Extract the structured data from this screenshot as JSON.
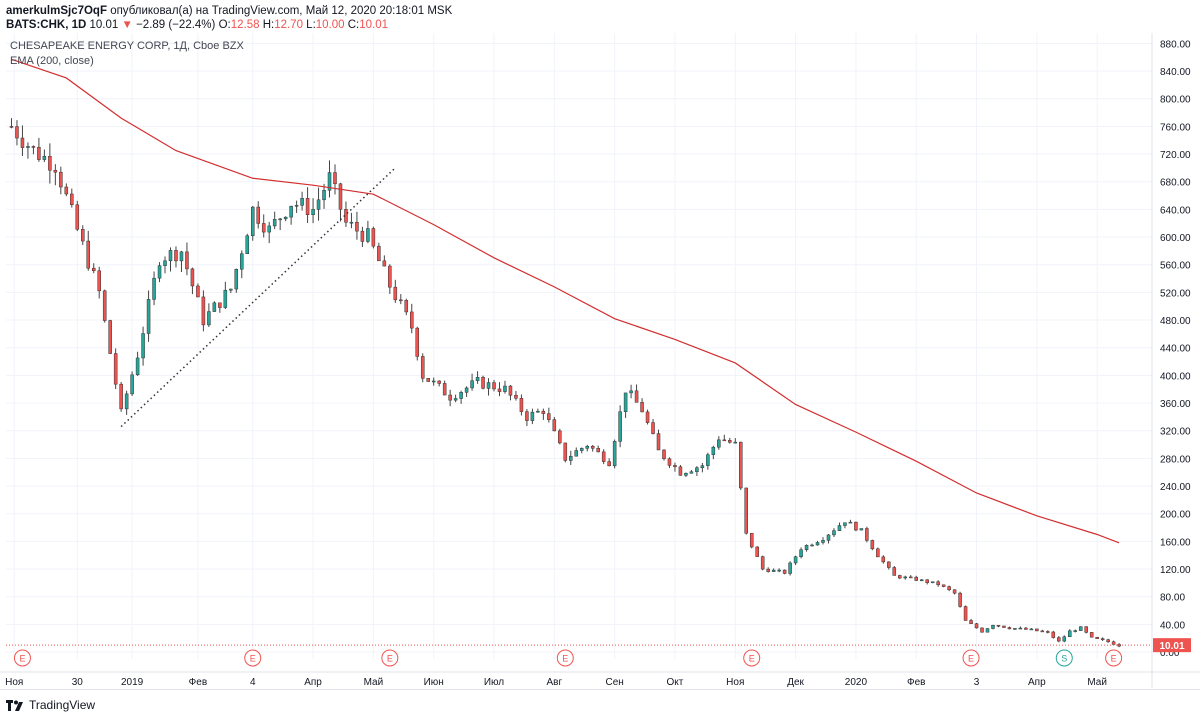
{
  "header": {
    "author": "amerkulmSjc7OqF",
    "published": "опубликовал(а) на TradingView.com, Май 12, 2020 20:18:01 MSK",
    "symbol": "BATS:CHK, 1D",
    "last": "10.01",
    "change_arrow": "▼",
    "change": "−2.89 (−22.4%)",
    "ohlc_o_label": "O:",
    "ohlc_o": "12.58",
    "ohlc_h_label": "H:",
    "ohlc_h": "12.70",
    "ohlc_l_label": "L:",
    "ohlc_l": "10.00",
    "ohlc_c_label": "C:",
    "ohlc_c": "10.01"
  },
  "legend": {
    "title": "CHESAPEAKE ENERGY CORP, 1Д, Cboe BZX",
    "indicator": "EMA (200, close)"
  },
  "footer": {
    "brand": "TradingView"
  },
  "colors": {
    "up": "#26a69a",
    "down": "#ef5350",
    "ema": "#d32f2f",
    "grid": "#f0f3fa",
    "text": "#131722",
    "axis": "#e0e3eb",
    "trendline": "#333333"
  },
  "chart_data": {
    "type": "candlestick",
    "y_scale": "linear",
    "ylim": [
      -10,
      895
    ],
    "y_ticks": [
      0,
      40,
      80,
      120,
      160,
      200,
      240,
      280,
      320,
      360,
      400,
      440,
      480,
      520,
      560,
      600,
      640,
      680,
      720,
      760,
      800,
      840,
      880
    ],
    "y_tick_labels": [
      "0.00",
      "40.00",
      "80.00",
      "120.00",
      "160.00",
      "200.00",
      "240.00",
      "280.00",
      "320.00",
      "360.00",
      "400.00",
      "440.00",
      "480.00",
      "520.00",
      "560.00",
      "600.00",
      "640.00",
      "680.00",
      "720.00",
      "760.00",
      "800.00",
      "840.00",
      "880.00"
    ],
    "x_labels": [
      {
        "label": "Ноя",
        "t": 0.5
      },
      {
        "label": "30",
        "t": 12
      },
      {
        "label": "2019",
        "t": 22
      },
      {
        "label": "Фев",
        "t": 34
      },
      {
        "label": "4",
        "t": 44
      },
      {
        "label": "Апр",
        "t": 55
      },
      {
        "label": "Май",
        "t": 66
      },
      {
        "label": "Июн",
        "t": 77
      },
      {
        "label": "Июл",
        "t": 88
      },
      {
        "label": "Авг",
        "t": 99
      },
      {
        "label": "Сен",
        "t": 110
      },
      {
        "label": "Окт",
        "t": 121
      },
      {
        "label": "Ноя",
        "t": 132
      },
      {
        "label": "Дек",
        "t": 143
      },
      {
        "label": "2020",
        "t": 154
      },
      {
        "label": "Фев",
        "t": 165
      },
      {
        "label": "3",
        "t": 176
      },
      {
        "label": "Апр",
        "t": 187
      },
      {
        "label": "Май",
        "t": 198
      }
    ],
    "last_price": 10.01,
    "last_price_label": "10.01",
    "events": [
      {
        "t": 2,
        "label": "E"
      },
      {
        "t": 44,
        "label": "E"
      },
      {
        "t": 69,
        "label": "E"
      },
      {
        "t": 101,
        "label": "E"
      },
      {
        "t": 135,
        "label": "E"
      },
      {
        "t": 175,
        "label": "E"
      },
      {
        "t": 192,
        "label": "S"
      },
      {
        "t": 201,
        "label": "E"
      }
    ],
    "ema": [
      {
        "t": 0,
        "v": 857
      },
      {
        "t": 10,
        "v": 830
      },
      {
        "t": 20,
        "v": 772
      },
      {
        "t": 30,
        "v": 725
      },
      {
        "t": 44,
        "v": 685
      },
      {
        "t": 55,
        "v": 675
      },
      {
        "t": 66,
        "v": 662
      },
      {
        "t": 77,
        "v": 618
      },
      {
        "t": 88,
        "v": 570
      },
      {
        "t": 99,
        "v": 528
      },
      {
        "t": 110,
        "v": 482
      },
      {
        "t": 121,
        "v": 452
      },
      {
        "t": 132,
        "v": 418
      },
      {
        "t": 143,
        "v": 358
      },
      {
        "t": 154,
        "v": 318
      },
      {
        "t": 165,
        "v": 276
      },
      {
        "t": 176,
        "v": 230
      },
      {
        "t": 187,
        "v": 197
      },
      {
        "t": 198,
        "v": 170
      },
      {
        "t": 202,
        "v": 158
      }
    ],
    "trendline": [
      {
        "t": 20,
        "v": 326
      },
      {
        "t": 70,
        "v": 700
      }
    ],
    "keypoints": [
      {
        "t": 0,
        "v": 760
      },
      {
        "t": 4,
        "v": 725
      },
      {
        "t": 8,
        "v": 705
      },
      {
        "t": 12,
        "v": 610
      },
      {
        "t": 16,
        "v": 520
      },
      {
        "t": 20,
        "v": 345
      },
      {
        "t": 23,
        "v": 430
      },
      {
        "t": 27,
        "v": 570
      },
      {
        "t": 31,
        "v": 580
      },
      {
        "t": 35,
        "v": 480
      },
      {
        "t": 40,
        "v": 525
      },
      {
        "t": 44,
        "v": 640
      },
      {
        "t": 47,
        "v": 610
      },
      {
        "t": 51,
        "v": 650
      },
      {
        "t": 55,
        "v": 640
      },
      {
        "t": 58,
        "v": 685
      },
      {
        "t": 61,
        "v": 620
      },
      {
        "t": 65,
        "v": 600
      },
      {
        "t": 69,
        "v": 530
      },
      {
        "t": 73,
        "v": 470
      },
      {
        "t": 75,
        "v": 400
      },
      {
        "t": 80,
        "v": 370
      },
      {
        "t": 85,
        "v": 390
      },
      {
        "t": 90,
        "v": 380
      },
      {
        "t": 94,
        "v": 340
      },
      {
        "t": 97,
        "v": 350
      },
      {
        "t": 101,
        "v": 280
      },
      {
        "t": 105,
        "v": 300
      },
      {
        "t": 109,
        "v": 275
      },
      {
        "t": 112,
        "v": 380
      },
      {
        "t": 115,
        "v": 350
      },
      {
        "t": 118,
        "v": 290
      },
      {
        "t": 122,
        "v": 260
      },
      {
        "t": 126,
        "v": 270
      },
      {
        "t": 129,
        "v": 310
      },
      {
        "t": 132,
        "v": 300
      },
      {
        "t": 134,
        "v": 170
      },
      {
        "t": 137,
        "v": 120
      },
      {
        "t": 141,
        "v": 115
      },
      {
        "t": 144,
        "v": 150
      },
      {
        "t": 148,
        "v": 165
      },
      {
        "t": 152,
        "v": 190
      },
      {
        "t": 155,
        "v": 175
      },
      {
        "t": 158,
        "v": 140
      },
      {
        "t": 161,
        "v": 110
      },
      {
        "t": 165,
        "v": 105
      },
      {
        "t": 169,
        "v": 98
      },
      {
        "t": 172,
        "v": 85
      },
      {
        "t": 174,
        "v": 45
      },
      {
        "t": 177,
        "v": 30
      },
      {
        "t": 179,
        "v": 40
      },
      {
        "t": 182,
        "v": 35
      },
      {
        "t": 186,
        "v": 32
      },
      {
        "t": 189,
        "v": 28
      },
      {
        "t": 191,
        "v": 15
      },
      {
        "t": 193,
        "v": 30
      },
      {
        "t": 195,
        "v": 35
      },
      {
        "t": 197,
        "v": 20
      },
      {
        "t": 200,
        "v": 15
      },
      {
        "t": 202,
        "v": 10
      }
    ]
  }
}
